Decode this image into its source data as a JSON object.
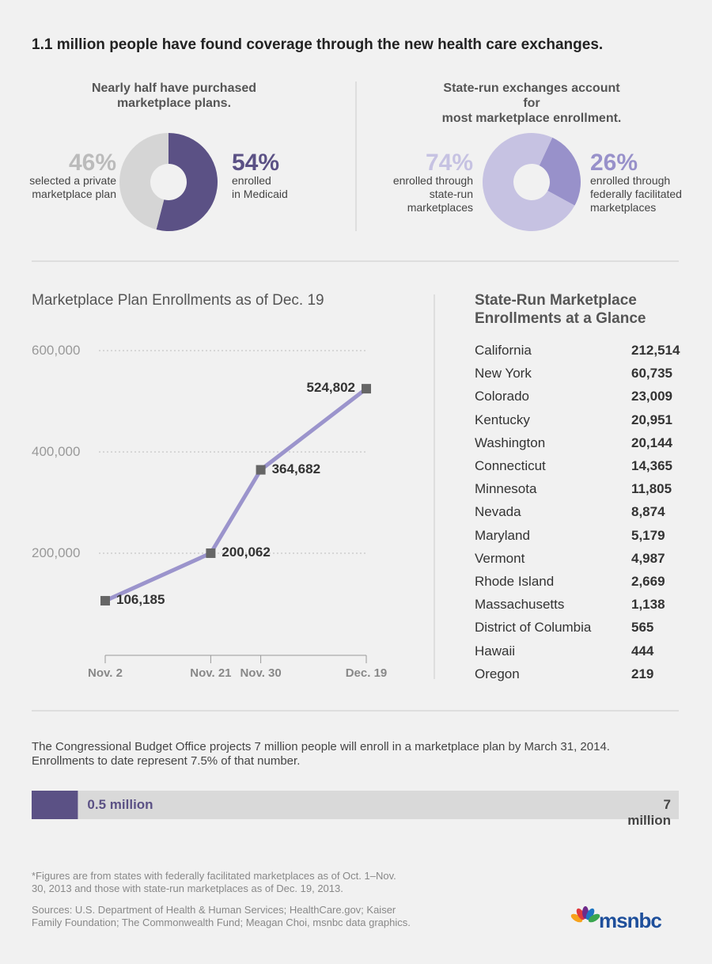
{
  "headline": "1.1 million people have found coverage through the new health care exchanges.",
  "chart_data": [
    {
      "type": "donut",
      "title": "Nearly half have purchased\nmarketplace plans.",
      "categories": [
        "selected a private\nmarketplace plan",
        "enrolled\nin Medicaid"
      ],
      "values": [
        46,
        54
      ],
      "value_labels": [
        "46%",
        "54%"
      ],
      "colors": [
        "#d5d5d5",
        "#5b5185"
      ]
    },
    {
      "type": "donut",
      "title": "State-run exchanges account for\nmost marketplace enrollment.",
      "categories": [
        "enrolled through\nstate-run\nmarketplaces",
        "enrolled through\nfederally facilitated\nmarketplaces"
      ],
      "values": [
        74,
        26
      ],
      "value_labels": [
        "74%",
        "26%"
      ],
      "colors": [
        "#c6c2e2",
        "#9891ca"
      ]
    },
    {
      "type": "line",
      "title": "Marketplace Plan Enrollments as of Dec. 19",
      "x": [
        "Nov. 2",
        "Nov. 21",
        "Nov. 30",
        "Dec. 19"
      ],
      "series": [
        {
          "values": [
            106185,
            200062,
            364682,
            524802
          ],
          "value_labels": [
            "106,185",
            "200,062",
            "364,682",
            "524,802"
          ],
          "color": "#9b94cc",
          "marker_color": "#666666"
        }
      ],
      "ylim": [
        0,
        600000
      ],
      "yticks": [
        {
          "value": 200000,
          "label": "200,000"
        },
        {
          "value": 400000,
          "label": "400,000"
        },
        {
          "value": 600000,
          "label": "600,000"
        }
      ],
      "grid": true
    },
    {
      "type": "progress",
      "title": "The Congressional Budget Office projects 7 million people will enroll in a marketplace plan by March 31, 2014.\nEnrollments to date represent 7.5% of that number.",
      "values": [
        0.5,
        7
      ],
      "value_labels": [
        "0.5 million",
        "7 million"
      ],
      "colors": [
        "#5b5185",
        "#d9d9d9"
      ],
      "xlim": [
        0,
        7
      ]
    }
  ],
  "table": {
    "title": "State-Run Marketplace\nEnrollments at a Glance",
    "rows": [
      [
        "California",
        "212,514"
      ],
      [
        "New York",
        "60,735"
      ],
      [
        "Colorado",
        "23,009"
      ],
      [
        "Kentucky",
        "20,951"
      ],
      [
        "Washington",
        "20,144"
      ],
      [
        "Connecticut",
        "14,365"
      ],
      [
        "Minnesota",
        "11,805"
      ],
      [
        "Nevada",
        "8,874"
      ],
      [
        "Maryland",
        "5,179"
      ],
      [
        "Vermont",
        "4,987"
      ],
      [
        "Rhode Island",
        "2,669"
      ],
      [
        "Massachusetts",
        "1,138"
      ],
      [
        "District of Columbia",
        "565"
      ],
      [
        "Hawaii",
        "444"
      ],
      [
        "Oregon",
        "219"
      ]
    ]
  },
  "footnote": "*Figures are from states with federally facilitated marketplaces as of Oct. 1–Nov.\n30, 2013 and those with state-run marketplaces as of Dec. 19, 2013.",
  "sources": "Sources: U.S. Department of Health & Human Services; HealthCare.gov; Kaiser\nFamily Foundation; The Commonwealth Fund; Meagan Choi, msnbc data graphics.",
  "logo": "msnbc"
}
